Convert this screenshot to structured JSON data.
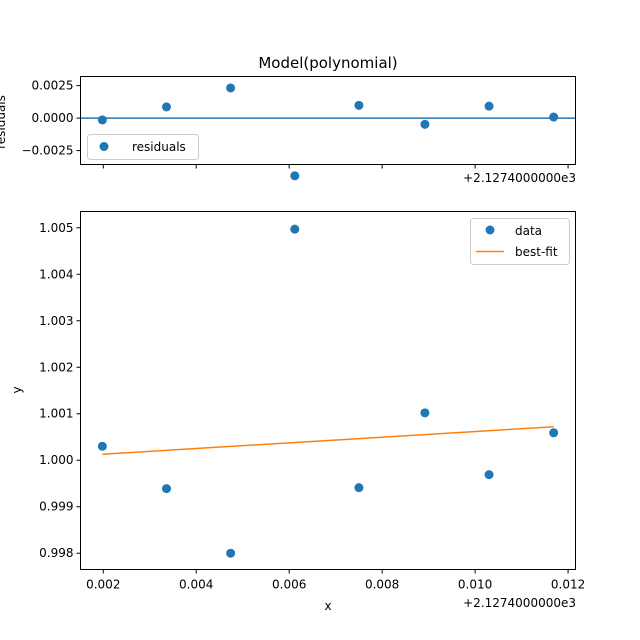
{
  "chart_data": [
    {
      "type": "scatter",
      "title": "Model(polynomial)",
      "xlabel": "",
      "ylabel": "residuals",
      "offset_text": "+2.1274000000e3",
      "x_offset": 2127.4,
      "xlim": [
        0.00151,
        0.01216
      ],
      "ylim": [
        -0.00357,
        0.0032
      ],
      "yticks": [
        -0.0025,
        0.0,
        0.0025
      ],
      "ytick_labels": [
        "−0.0025",
        "0.0000",
        "0.0025"
      ],
      "xticks": [
        0.002,
        0.004,
        0.006,
        0.008,
        0.01,
        0.012
      ],
      "xtick_labels_shown": false,
      "grid": false,
      "legend_position": "lower-left",
      "series": [
        {
          "name": "residuals",
          "kind": "points",
          "color": "#1f77b4",
          "x": [
            0.00198,
            0.00336,
            0.00474,
            0.00612,
            0.0075,
            0.00892,
            0.0103,
            0.01169
          ],
          "y": [
            -0.00014,
            0.00086,
            0.00232,
            -0.00444,
            0.00098,
            -0.00048,
            0.00092,
            8e-05
          ]
        }
      ],
      "reference_line": {
        "y": 0.0,
        "color": "#1f77b4"
      }
    },
    {
      "type": "scatter",
      "title": "",
      "xlabel": "x",
      "ylabel": "y",
      "offset_text": "+2.1274000000e3",
      "x_offset": 2127.4,
      "xlim": [
        0.00151,
        0.01216
      ],
      "ylim": [
        0.99765,
        1.00535
      ],
      "yticks": [
        0.998,
        0.999,
        1.0,
        1.001,
        1.002,
        1.003,
        1.004,
        1.005
      ],
      "ytick_labels": [
        "0.998",
        "0.999",
        "1.000",
        "1.001",
        "1.002",
        "1.003",
        "1.004",
        "1.005"
      ],
      "xticks": [
        0.002,
        0.004,
        0.006,
        0.008,
        0.01,
        0.012
      ],
      "xtick_labels": [
        "0.002",
        "0.004",
        "0.006",
        "0.008",
        "0.010",
        "0.012"
      ],
      "grid": false,
      "legend_position": "upper-right",
      "series": [
        {
          "name": "data",
          "kind": "points",
          "color": "#1f77b4",
          "x": [
            0.00198,
            0.00336,
            0.00474,
            0.00612,
            0.0075,
            0.00892,
            0.0103,
            0.01169
          ],
          "y": [
            1.0003,
            0.99939,
            0.998,
            1.00497,
            0.99941,
            1.00102,
            0.99969,
            1.00059
          ]
        },
        {
          "name": "best-fit",
          "kind": "line",
          "color": "#ff7f0e",
          "x": [
            0.00198,
            0.01169
          ],
          "y": [
            1.00013,
            1.00072
          ]
        }
      ]
    }
  ]
}
